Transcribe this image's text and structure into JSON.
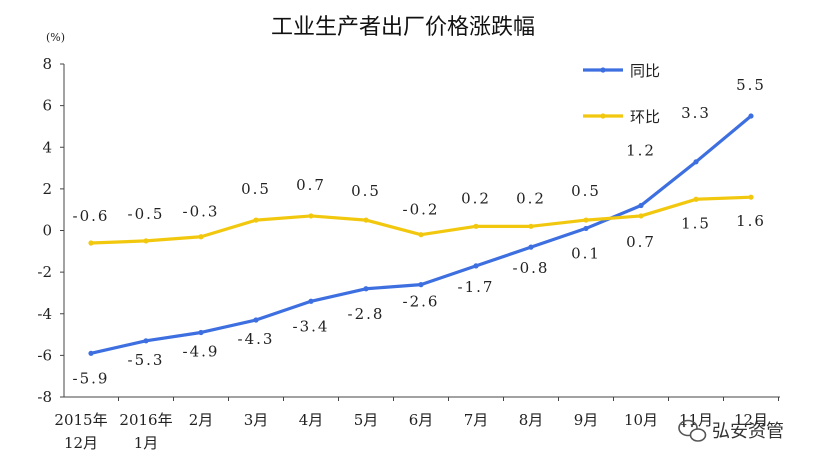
{
  "chart_data": {
    "type": "line",
    "title": "工业生产者出厂价格涨跌幅",
    "unit": "(%)",
    "ylim": [
      -8,
      8
    ],
    "yticks": [
      8,
      6,
      4,
      2,
      0,
      -2,
      -4,
      -6,
      -8
    ],
    "categories": [
      [
        "2015年",
        "12月"
      ],
      [
        "2016年",
        "1月"
      ],
      [
        "2月"
      ],
      [
        "3月"
      ],
      [
        "4月"
      ],
      [
        "5月"
      ],
      [
        "6月"
      ],
      [
        "7月"
      ],
      [
        "8月"
      ],
      [
        "9月"
      ],
      [
        "10月"
      ],
      [
        "11月"
      ],
      [
        "12月"
      ]
    ],
    "series": [
      {
        "name": "同比",
        "color": "#3d6fe0",
        "values": [
          -5.9,
          -5.3,
          -4.9,
          -4.3,
          -3.4,
          -2.8,
          -2.6,
          -1.7,
          -0.8,
          0.1,
          1.2,
          3.3,
          5.5
        ],
        "labels": [
          "-5.9",
          "-5.3",
          "-4.9",
          "-4.3",
          "-3.4",
          "-2.8",
          "-2.6",
          "-1.7",
          "-0.8",
          "0.1",
          "1.2",
          "3.3",
          "5.5"
        ]
      },
      {
        "name": "环比",
        "color": "#f2c80f",
        "values": [
          -0.6,
          -0.5,
          -0.3,
          0.5,
          0.7,
          0.5,
          -0.2,
          0.2,
          0.2,
          0.5,
          0.7,
          1.5,
          1.6
        ],
        "labels": [
          "-0.6",
          "-0.5",
          "-0.3",
          "0.5",
          "0.7",
          "0.5",
          "-0.2",
          "0.2",
          "0.2",
          "0.5",
          "0.7",
          "1.5",
          "1.6"
        ]
      }
    ],
    "grid": false,
    "legend_position": "top-right"
  },
  "watermark": {
    "text": "弘安资管",
    "icon": "wechat-icon"
  }
}
